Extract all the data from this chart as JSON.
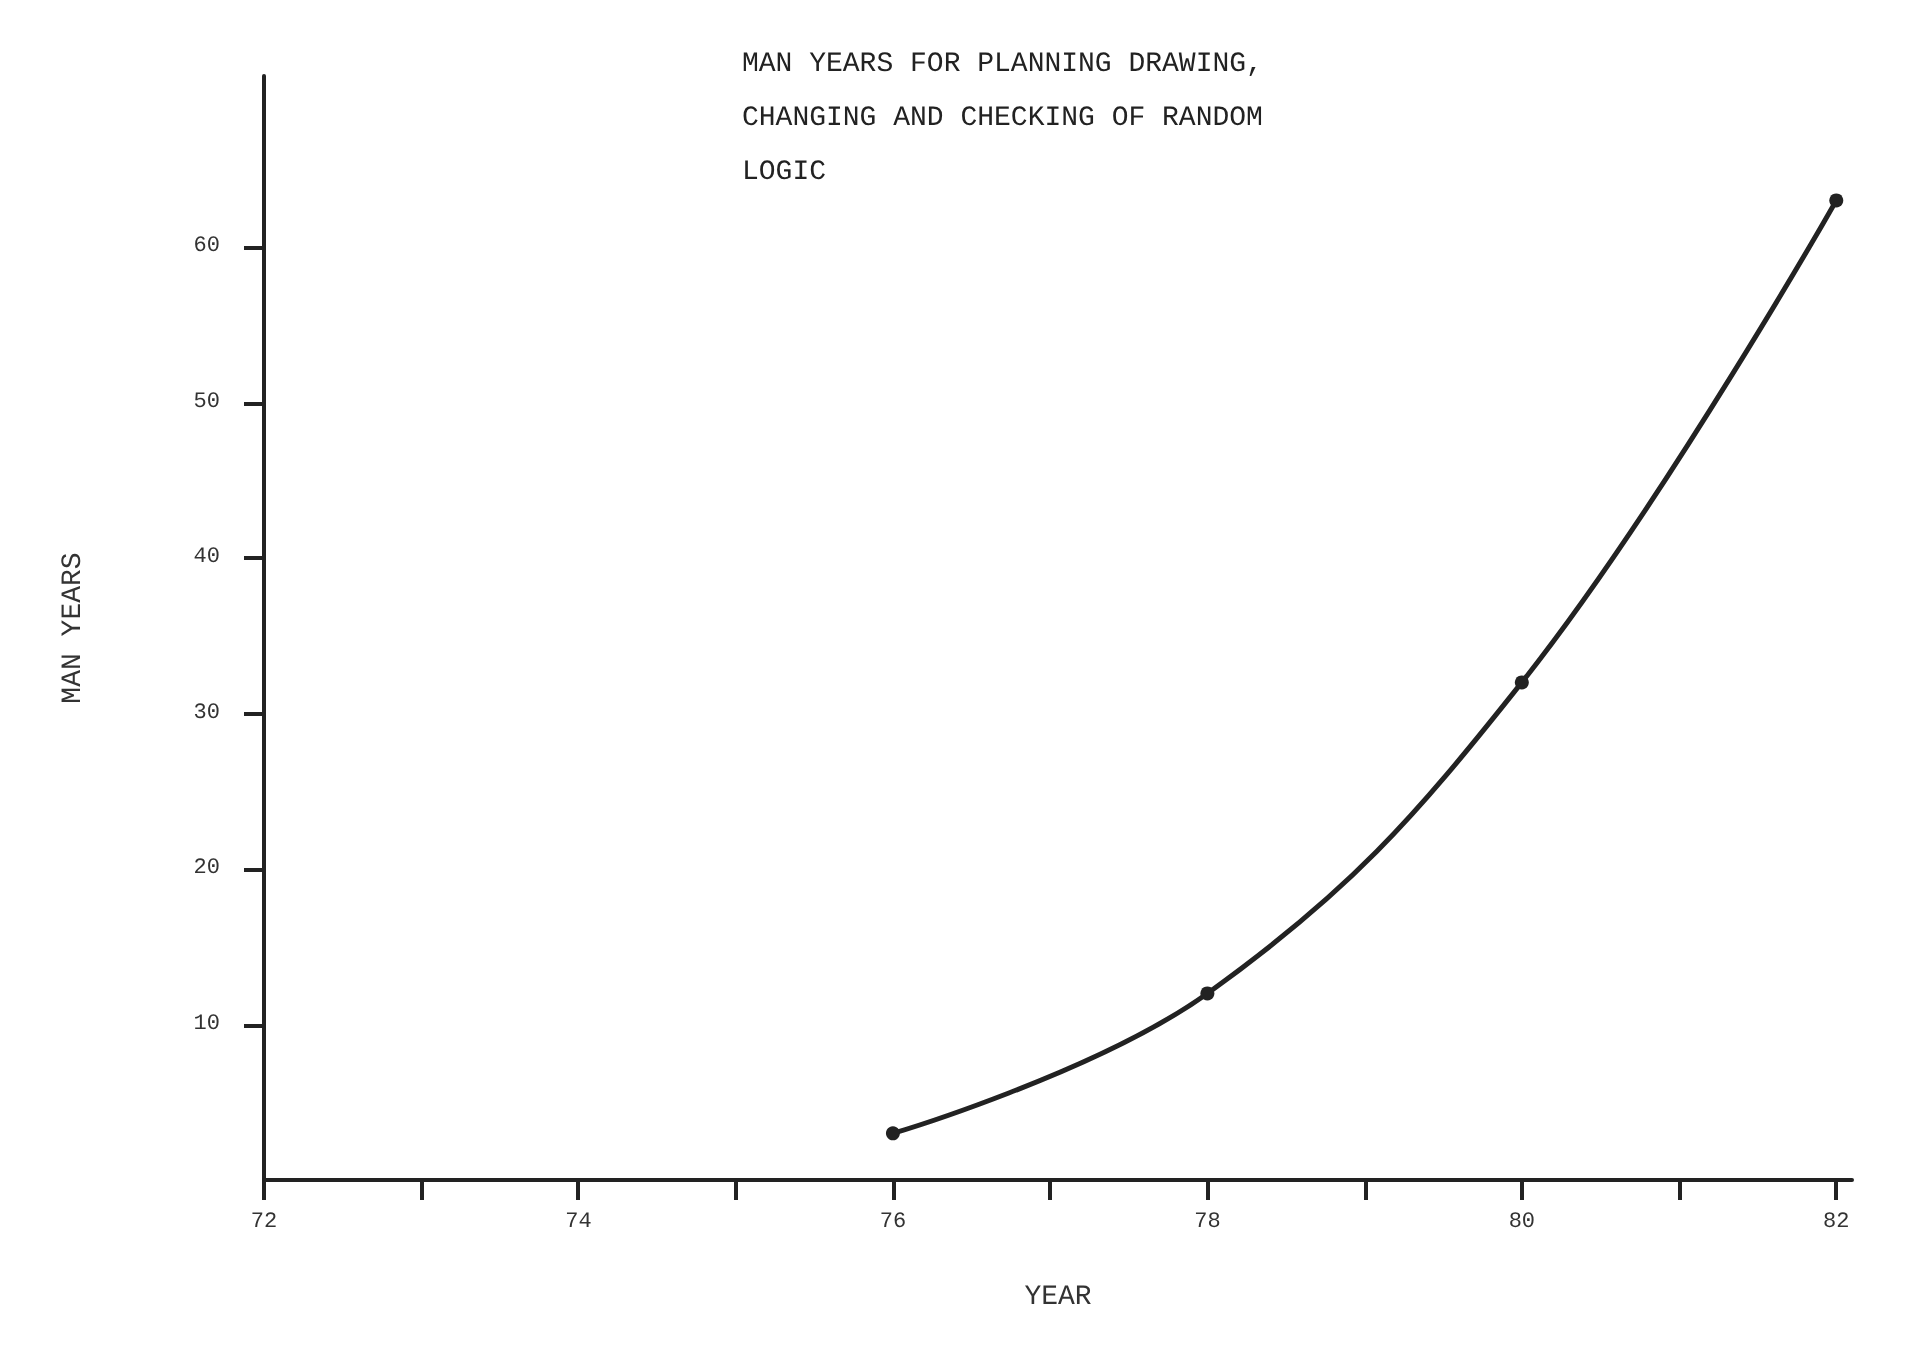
{
  "chart_data": {
    "type": "line",
    "title": "MAN YEARS FOR PLANNING DRAWING,\nCHANGING AND CHECKING OF RANDOM\nLOGIC",
    "xlabel": "YEAR",
    "ylabel": "MAN YEARS",
    "x": [
      76,
      78,
      80,
      82
    ],
    "series": [
      {
        "color": "#222222",
        "values": [
          3,
          12,
          32,
          63
        ]
      }
    ],
    "xlim": [
      72,
      82.1
    ],
    "xticks": [
      72,
      {
        "value": 73,
        "label": null
      },
      74,
      {
        "value": 75,
        "label": null
      },
      76,
      {
        "value": 77,
        "label": null
      },
      78,
      {
        "value": 79,
        "label": null
      },
      80,
      {
        "value": 81,
        "label": null
      },
      82
    ],
    "ylim": [
      0,
      71
    ],
    "yticks": [
      10,
      20,
      30,
      40,
      50,
      60
    ],
    "grid": false,
    "marker": "circle",
    "line_style": "solid"
  }
}
